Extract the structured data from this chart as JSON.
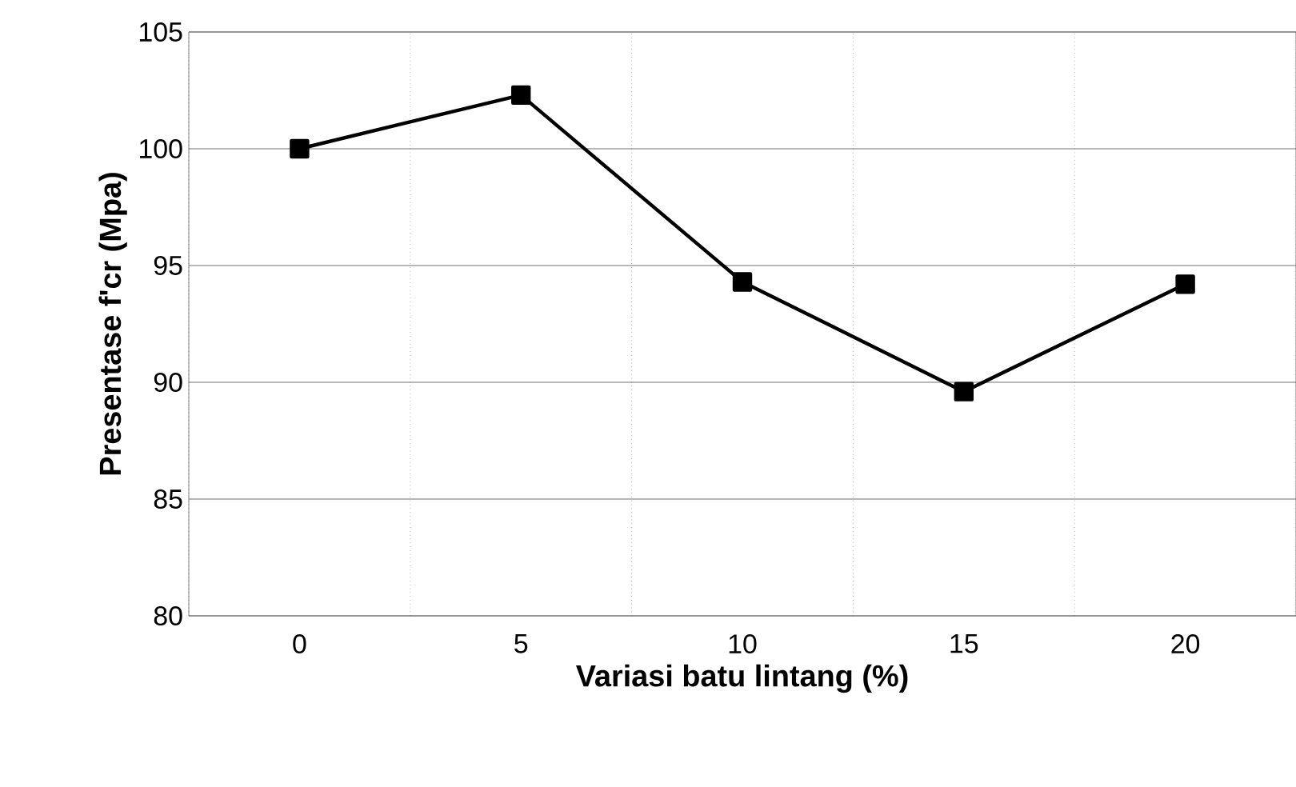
{
  "chart_data": {
    "type": "line",
    "xlabel": "Variasi batu lintang (%)",
    "ylabel": "Presentase f'cr (Mpa)",
    "categories": [
      "0",
      "5",
      "10",
      "15",
      "20"
    ],
    "series": [
      {
        "color": "#000000",
        "values": [
          100,
          102.3,
          94.3,
          89.6,
          94.2
        ]
      }
    ],
    "ylim": [
      80,
      105
    ],
    "yticks": [
      80,
      85,
      90,
      95,
      100,
      105
    ],
    "grid": true,
    "marker": "square",
    "line_style": "solid"
  }
}
